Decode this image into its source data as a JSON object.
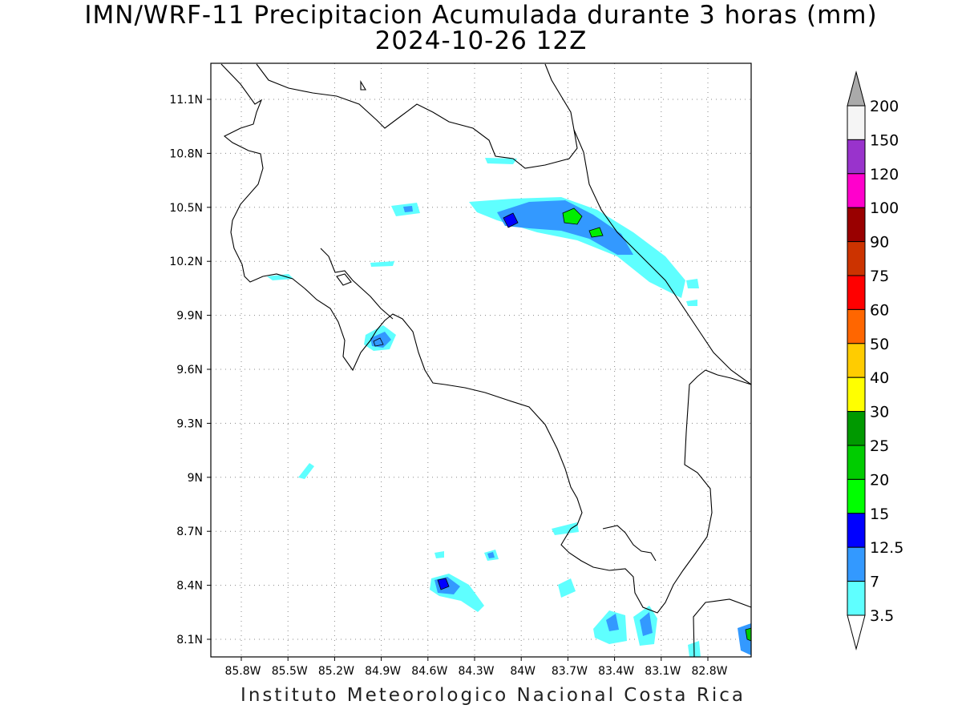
{
  "title": "IMN/WRF-11 Precipitacion Acumulada durante 3 horas (mm)",
  "subtitle": "2024-10-26 12Z",
  "footer": "Instituto Meteorologico Nacional Costa Rica",
  "lat_ticks": [
    "11.1N",
    "10.8N",
    "10.5N",
    "10.2N",
    "9.9N",
    "9.6N",
    "9.3N",
    "9N",
    "8.7N",
    "8.4N",
    "8.1N"
  ],
  "lon_ticks": [
    "85.8W",
    "85.5W",
    "85.2W",
    "84.9W",
    "84.6W",
    "84.3W",
    "84W",
    "83.7W",
    "83.4W",
    "83.1W",
    "82.8W"
  ],
  "legend": {
    "labels": [
      "3.5",
      "7",
      "12.5",
      "15",
      "20",
      "25",
      "30",
      "40",
      "50",
      "60",
      "75",
      "90",
      "100",
      "120",
      "150",
      "200"
    ],
    "colors": [
      "#5fffff",
      "#3399ff",
      "#0000ff",
      "#00ff00",
      "#00cc00",
      "#009900",
      "#ffff00",
      "#ffcc00",
      "#ff6600",
      "#ff0000",
      "#cc3300",
      "#990000",
      "#ff00cc",
      "#9933cc",
      "#f5f5f5",
      "#aaaaaa"
    ]
  }
}
